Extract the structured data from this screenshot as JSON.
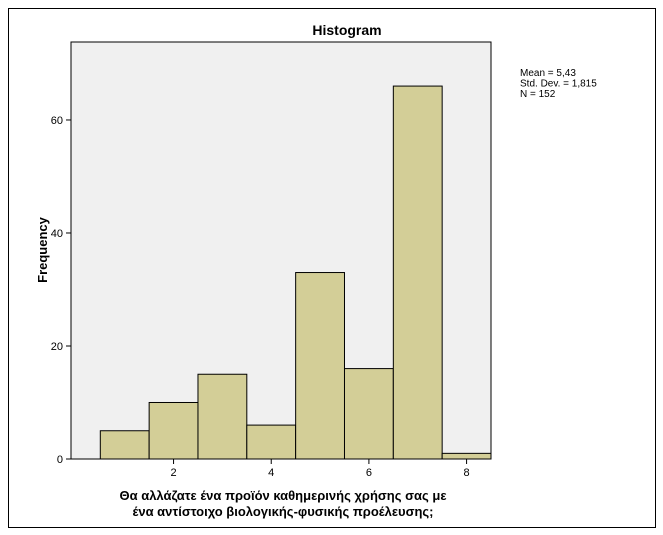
{
  "chart_data": {
    "type": "bar",
    "title": "Histogram",
    "xlabel": [
      "Θα αλλάζατε ένα προϊόν καθημερινής χρήσης σας με",
      "ένα αντίστοιχο βιολογικής-φυσικής προέλευσης;"
    ],
    "ylabel": "Frequency",
    "x": [
      1,
      2,
      3,
      4,
      5,
      6,
      7,
      8
    ],
    "values": [
      5,
      10,
      15,
      6,
      33,
      16,
      66,
      1
    ],
    "xlim": [
      -0.1,
      8.5
    ],
    "ylim": [
      0,
      73.8
    ],
    "xticks": [
      2,
      4,
      6,
      8
    ],
    "yticks": [
      0,
      20,
      40,
      60
    ],
    "grid": false,
    "annotations": [
      "Mean = 5,43",
      "Std. Dev. = 1,815",
      "N = 152"
    ],
    "colors": {
      "bar": "#D3CE97",
      "plot_background": "#F0F0F0",
      "outline": "#000000"
    }
  }
}
